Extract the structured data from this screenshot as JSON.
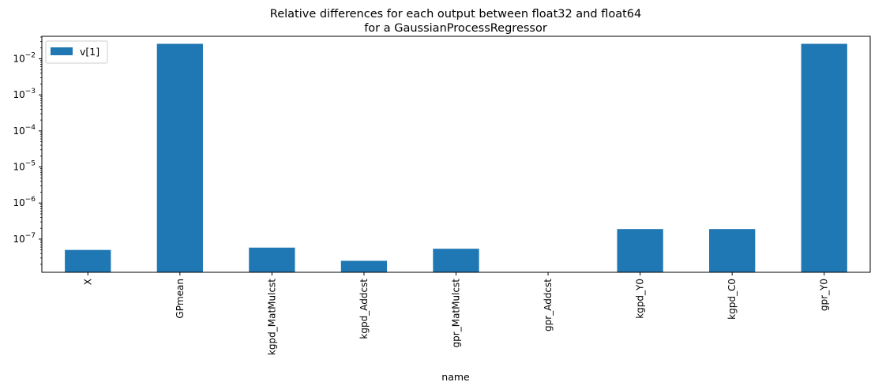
{
  "chart_data": {
    "type": "bar",
    "title_lines": [
      "Relative differences for each output between float32 and float64",
      "for a GaussianProcessRegressor"
    ],
    "xlabel": "name",
    "ylabel": "",
    "yscale": "log",
    "categories": [
      "X",
      "GPmean",
      "kgpd_MatMulcst",
      "kgpd_Addcst",
      "gpr_MatMulcst",
      "gpr_Addcst",
      "kgpd_Y0",
      "kgpd_C0",
      "gpr_Y0"
    ],
    "series": [
      {
        "name": "v[1]",
        "color": "#1f77b4",
        "values": [
          5e-08,
          0.026,
          5.8e-08,
          2.5e-08,
          5.4e-08,
          0,
          1.9e-07,
          1.9e-07,
          0.026
        ]
      }
    ],
    "ylim": [
      1.2e-08,
      0.042
    ],
    "ytick_labels": [
      {
        "value": 1e-07,
        "base": "10",
        "exp": "−7"
      },
      {
        "value": 1e-06,
        "base": "10",
        "exp": "−6"
      },
      {
        "value": 1e-05,
        "base": "10",
        "exp": "−5"
      },
      {
        "value": 0.0001,
        "base": "10",
        "exp": "−4"
      },
      {
        "value": 0.001,
        "base": "10",
        "exp": "−3"
      },
      {
        "value": 0.01,
        "base": "10",
        "exp": "−2"
      }
    ],
    "grid": false,
    "legend": "top-left"
  }
}
